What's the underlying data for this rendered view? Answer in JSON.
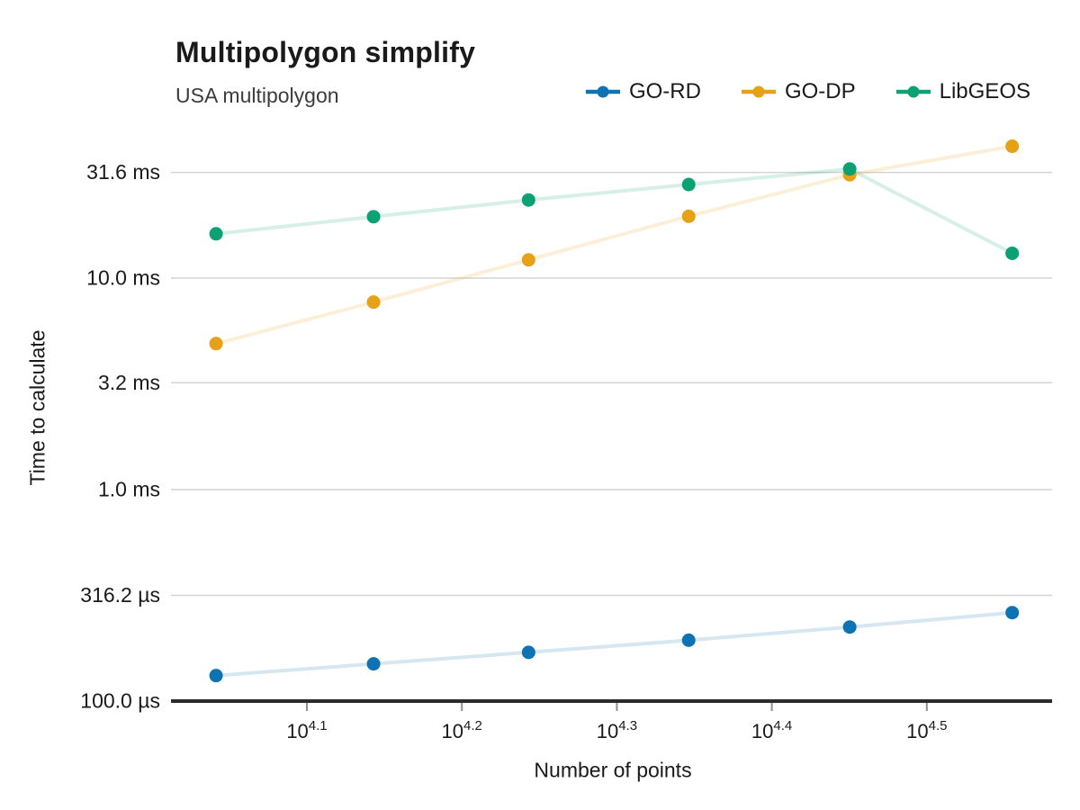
{
  "chart_data": {
    "type": "line",
    "title": "Multipolygon simplify",
    "subtitle": "USA multipolygon",
    "xlabel": "Number of points",
    "ylabel": "Time to calculate",
    "x_scale": "log10",
    "y_scale": "log10",
    "grid": true,
    "legend_position": "top-right",
    "x_range_points_approx": [
      10300,
      38000
    ],
    "y_range_us_approx": [
      100,
      47000
    ],
    "x_ticks": [
      {
        "base": "10",
        "exponent": "4.1",
        "value": 12589
      },
      {
        "base": "10",
        "exponent": "4.2",
        "value": 15849
      },
      {
        "base": "10",
        "exponent": "4.3",
        "value": 19953
      },
      {
        "base": "10",
        "exponent": "4.4",
        "value": 25119
      },
      {
        "base": "10",
        "exponent": "4.5",
        "value": 31623
      }
    ],
    "y_ticks": [
      {
        "label": "31.6 ms",
        "value_us": 31600
      },
      {
        "label": "10.0 ms",
        "value_us": 10000
      },
      {
        "label": "3.2 ms",
        "value_us": 3200
      },
      {
        "label": "1.0 ms",
        "value_us": 1000
      },
      {
        "label": "316.2 µs",
        "value_us": 316.2
      },
      {
        "label": "100.0 µs",
        "value_us": 100
      }
    ],
    "x_values_number_of_points": [
      11000,
      13900,
      17500,
      22200,
      28200,
      35900
    ],
    "series": [
      {
        "name": "GO-RD",
        "color": "#0e73b3",
        "values_us": [
          132,
          150,
          170,
          194,
          224,
          262
        ]
      },
      {
        "name": "GO-DP",
        "color": "#e6a117",
        "values_us": [
          4900,
          7700,
          12200,
          19600,
          30800,
          42000
        ]
      },
      {
        "name": "LibGEOS",
        "color": "#0ca173",
        "values_us": [
          16200,
          19500,
          23400,
          27700,
          32800,
          13100
        ]
      }
    ],
    "colors": {
      "grid": "#d4d4d4",
      "axis": "#2b2b2b",
      "tick_mark": "#8f8f8f",
      "text": "#1a1a1a",
      "subtitle_text": "#3c3c3c"
    }
  }
}
